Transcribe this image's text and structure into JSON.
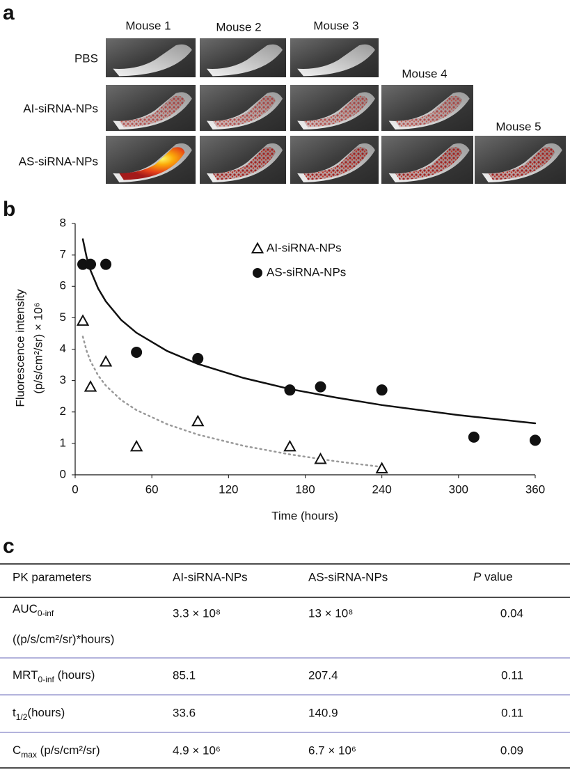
{
  "panel_a": {
    "label": "a",
    "mice": [
      "Mouse 1",
      "Mouse 2",
      "Mouse 3",
      "Mouse 4",
      "Mouse 5"
    ],
    "rows": [
      "PBS",
      "AI-siRNA-NPs",
      "AS-siRNA-NPs"
    ]
  },
  "chart_data": {
    "type": "scatter",
    "panel_label": "b",
    "x_label": "Time (hours)",
    "y_label": [
      "Fluorescence intensity",
      "(p/s/cm²/sr) × 10⁶"
    ],
    "xlim": [
      0,
      360
    ],
    "xticks": [
      0,
      60,
      120,
      180,
      240,
      300,
      360
    ],
    "ylim": [
      0,
      8
    ],
    "yticks": [
      0,
      1,
      2,
      3,
      4,
      5,
      6,
      7,
      8
    ],
    "grid": false,
    "legend": "upper center",
    "series": [
      {
        "name": "AI-siRNA-NPs",
        "marker": "triangle",
        "color": "#111111",
        "x": [
          6,
          12,
          24,
          48,
          96,
          168,
          192,
          240
        ],
        "values": [
          4.9,
          2.8,
          3.6,
          0.9,
          1.7,
          0.9,
          0.5,
          0.2
        ],
        "trend": {
          "style": "dotted",
          "color": "#999999",
          "x": [
            6,
            9,
            12,
            18,
            24,
            36,
            48,
            72,
            96,
            132,
            168,
            204,
            240
          ],
          "values": [
            4.4,
            3.94,
            3.62,
            3.16,
            2.84,
            2.38,
            2.06,
            1.61,
            1.28,
            0.92,
            0.65,
            0.43,
            0.25
          ]
        }
      },
      {
        "name": "AS-siRNA-NPs",
        "marker": "circle",
        "color": "#111111",
        "x": [
          6,
          12,
          24,
          48,
          96,
          168,
          192,
          240,
          312,
          360
        ],
        "values": [
          6.7,
          6.7,
          6.7,
          3.9,
          3.7,
          2.7,
          2.8,
          2.7,
          1.2,
          1.1
        ],
        "trend": {
          "style": "solid",
          "color": "#111111",
          "x": [
            6,
            9,
            12,
            18,
            24,
            36,
            48,
            72,
            96,
            132,
            168,
            204,
            240,
            300,
            360
          ],
          "values": [
            7.5,
            6.92,
            6.51,
            5.93,
            5.52,
            4.93,
            4.52,
            3.94,
            3.53,
            3.08,
            2.73,
            2.46,
            2.22,
            1.9,
            1.64
          ]
        }
      }
    ]
  },
  "table": {
    "label": "c",
    "header": [
      "PK parameters",
      "AI-siRNA-NPs",
      "AS-siRNA-NPs",
      {
        "italic": "P",
        "text": " value"
      }
    ],
    "rows": [
      {
        "parameter": {
          "text": "AUC",
          "sub": "0-inf",
          "after": "",
          "line2": "((p/s/cm²/sr)*hours)"
        },
        "ai": "3.3 × 10⁸",
        "as": "13 × 10⁸",
        "p": 0.04
      },
      {
        "parameter": {
          "text": "MRT",
          "sub": "0-inf",
          "after": " (hours)"
        },
        "ai": 85.1,
        "as": 207.4,
        "p": 0.11
      },
      {
        "parameter": {
          "text": "t",
          "sub": "1/2",
          "after": "(hours)"
        },
        "ai": 33.6,
        "as": 140.9,
        "p": 0.11
      },
      {
        "parameter": {
          "text": "C",
          "sub": "max",
          "after": " (p/s/cm²/sr)"
        },
        "ai": "4.9 × 10⁶",
        "as": "6.7 × 10⁶",
        "p": 0.09
      }
    ]
  }
}
